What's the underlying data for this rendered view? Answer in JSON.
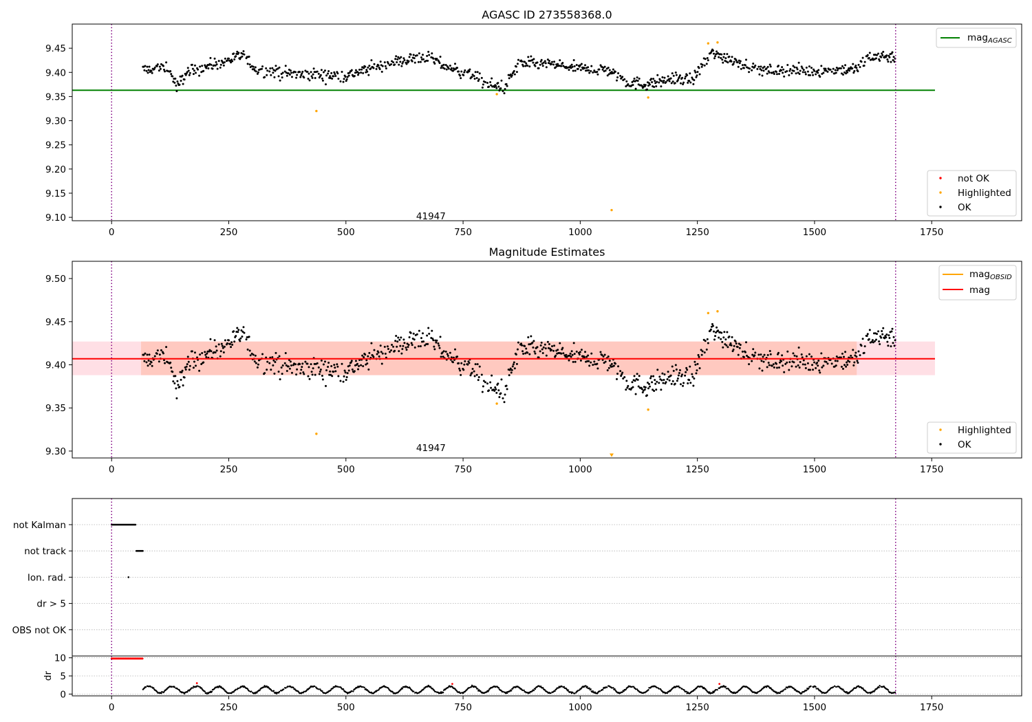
{
  "chart_data": [
    {
      "type": "scatter",
      "name": "agasc",
      "title": "AGASC ID 273558368.0",
      "xlim": [
        -84,
        1942
      ],
      "ylim": [
        9.093,
        9.5
      ],
      "xticks": [
        0,
        250,
        500,
        750,
        1000,
        1250,
        1500,
        1750
      ],
      "yticks": [
        9.1,
        9.15,
        9.2,
        9.25,
        9.3,
        9.35,
        9.4,
        9.45
      ],
      "vlines": [
        0,
        1673
      ],
      "hline": {
        "y": 9.363,
        "x0": -84,
        "x1": 1757,
        "color": "#008000"
      },
      "annotation": {
        "text": "41947",
        "x": 840,
        "y": 9.103
      },
      "legend_lines": [
        {
          "label": "mag",
          "sub": "AGASC",
          "color": "#008000"
        }
      ],
      "legend_points": [
        {
          "label": "not OK",
          "color": "#ff0000"
        },
        {
          "label": "Highlighted",
          "color": "#ffa500"
        },
        {
          "label": "OK",
          "color": "#000000"
        }
      ],
      "highlighted": [
        [
          437,
          9.32
        ],
        [
          822,
          9.355
        ],
        [
          1067,
          9.115
        ],
        [
          1145,
          9.348
        ],
        [
          1273,
          9.46
        ],
        [
          1293,
          9.462
        ]
      ],
      "ok_series": {
        "description": "dense OK points, 1 per 1.5 time units from x=67 to x=1672, y follows trend",
        "x_start": 67,
        "x_end": 1672,
        "step": 1.5,
        "trend": [
          [
            67,
            9.405
          ],
          [
            120,
            9.41
          ],
          [
            140,
            9.37
          ],
          [
            160,
            9.4
          ],
          [
            230,
            9.42
          ],
          [
            280,
            9.435
          ],
          [
            310,
            9.405
          ],
          [
            400,
            9.395
          ],
          [
            500,
            9.393
          ],
          [
            560,
            9.41
          ],
          [
            620,
            9.425
          ],
          [
            670,
            9.432
          ],
          [
            720,
            9.41
          ],
          [
            770,
            9.395
          ],
          [
            800,
            9.375
          ],
          [
            840,
            9.37
          ],
          [
            870,
            9.42
          ],
          [
            950,
            9.415
          ],
          [
            1000,
            9.408
          ],
          [
            1060,
            9.405
          ],
          [
            1100,
            9.38
          ],
          [
            1140,
            9.375
          ],
          [
            1200,
            9.388
          ],
          [
            1240,
            9.385
          ],
          [
            1280,
            9.44
          ],
          [
            1330,
            9.425
          ],
          [
            1380,
            9.405
          ],
          [
            1500,
            9.403
          ],
          [
            1590,
            9.407
          ],
          [
            1620,
            9.435
          ],
          [
            1672,
            9.432
          ]
        ],
        "scatter": 0.009
      }
    },
    {
      "type": "scatter",
      "name": "estimates",
      "title": "Magnitude Estimates",
      "xlim": [
        -84,
        1942
      ],
      "ylim": [
        9.292,
        9.52
      ],
      "xticks": [
        0,
        250,
        500,
        750,
        1000,
        1250,
        1500,
        1750
      ],
      "yticks": [
        9.3,
        9.35,
        9.4,
        9.45,
        9.5
      ],
      "vlines": [
        0,
        1673
      ],
      "hline": {
        "y": 9.407,
        "x0": -84,
        "x1": 1757,
        "color": "#ff0000"
      },
      "band": {
        "y0": 9.388,
        "y1": 9.427,
        "x0": -84,
        "x1": 1757
      },
      "annotation": {
        "text": "41947",
        "x": 840,
        "y": 9.3
      },
      "legend_lines": [
        {
          "label": "mag",
          "sub": "OBSID",
          "color": "#ffa500"
        },
        {
          "label": "mag",
          "sub": "",
          "color": "#ff0000"
        }
      ],
      "legend_points": [
        {
          "label": "Highlighted",
          "color": "#ffa500"
        },
        {
          "label": "OK",
          "color": "#000000"
        }
      ],
      "highlighted": [
        [
          437,
          9.32
        ],
        [
          822,
          9.355
        ],
        [
          1067,
          9.294
        ],
        [
          1145,
          9.348
        ],
        [
          1273,
          9.46
        ],
        [
          1293,
          9.462
        ]
      ]
    },
    {
      "type": "scatter",
      "name": "flags",
      "xlim": [
        -84,
        1942
      ],
      "categories": [
        "not Kalman",
        "not track",
        "Ion. rad.",
        "dr > 5",
        "OBS not OK"
      ],
      "vlines": [
        0,
        1673
      ],
      "flag_points": [
        {
          "category": "not Kalman",
          "x_start": 0,
          "x_end": 52,
          "step": 1.5
        },
        {
          "category": "not track",
          "x_start": 53,
          "x_end": 67,
          "step": 1.5
        },
        {
          "category": "Ion. rad.",
          "x_start": 36,
          "x_end": 36,
          "step": 1
        }
      ]
    },
    {
      "type": "line",
      "name": "dr",
      "ylabel": "dr",
      "xlim": [
        -84,
        1942
      ],
      "ylim": [
        -0.5,
        10.5
      ],
      "xticks": [
        0,
        250,
        500,
        750,
        1000,
        1250,
        1500,
        1750
      ],
      "yticks": [
        0,
        5,
        10
      ],
      "vlines": [
        0,
        1673
      ],
      "clipped_red": {
        "x_start": 0,
        "x_end": 67,
        "value": 9.8
      },
      "dr_red_points": [
        [
          182,
          3
        ],
        [
          727,
          2.8
        ],
        [
          1297,
          2.8
        ]
      ]
    }
  ]
}
